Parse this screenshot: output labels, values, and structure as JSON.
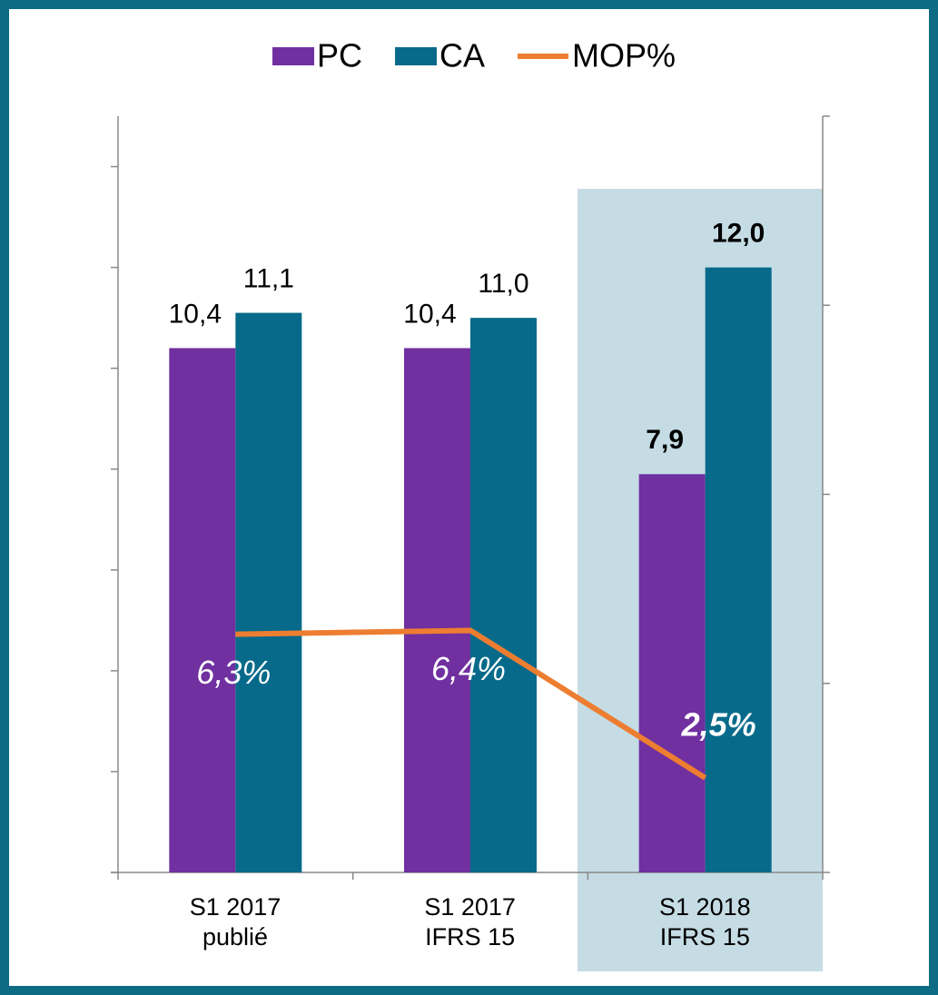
{
  "chart_data": {
    "type": "bar",
    "categories": [
      "S1 2017\npublié",
      "S1 2017\nIFRS 15",
      "S1 2018\nIFRS 15"
    ],
    "series": [
      {
        "name": "PC",
        "color": "#7030a0",
        "values": [
          10.4,
          10.4,
          7.9
        ],
        "value_labels": [
          "10,4",
          "10,4",
          "7,9"
        ]
      },
      {
        "name": "CA",
        "color": "#076a8a",
        "values": [
          11.1,
          11.0,
          12.0
        ],
        "value_labels": [
          "11,1",
          "11,0",
          "12,0"
        ]
      },
      {
        "name": "MOP%",
        "type": "line",
        "axis": "y2",
        "color": "#ed7d31",
        "values": [
          6.3,
          6.4,
          2.5
        ],
        "value_labels": [
          "6,3%",
          "6,4%",
          "2,5%"
        ]
      }
    ],
    "ylim": [
      0,
      15
    ],
    "yticks": [
      0,
      2,
      4,
      6,
      8,
      10,
      12,
      14
    ],
    "y2lim": [
      0,
      20
    ],
    "y2ticks": [
      0,
      5,
      10,
      15,
      20
    ],
    "legend": "top"
  }
}
